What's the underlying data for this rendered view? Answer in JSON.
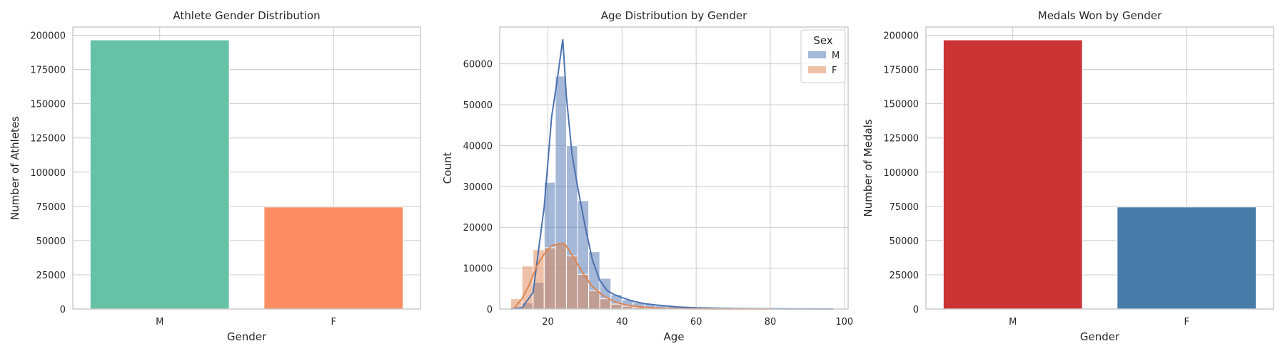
{
  "chart_data": [
    {
      "type": "bar",
      "title": "Athlete Gender Distribution",
      "xlabel": "Gender",
      "ylabel": "Number of Athletes",
      "categories": [
        "M",
        "F"
      ],
      "values": [
        196594,
        74522
      ],
      "colors": [
        "#66c2a5",
        "#fc8d62"
      ],
      "ylim": [
        0,
        206000
      ],
      "yticks": [
        0,
        25000,
        50000,
        75000,
        100000,
        125000,
        150000,
        175000,
        200000
      ],
      "grid": true
    },
    {
      "type": "histogram",
      "title": "Age Distribution by Gender",
      "xlabel": "Age",
      "ylabel": "Count",
      "legend_title": "Sex",
      "legend_position": "top-right",
      "xlim": [
        7,
        101
      ],
      "ylim": [
        0,
        69000
      ],
      "xticks": [
        20,
        40,
        60,
        80,
        100
      ],
      "yticks": [
        0,
        10000,
        20000,
        30000,
        40000,
        50000,
        60000
      ],
      "bin_edges": [
        10,
        13,
        16,
        19,
        22,
        25,
        28,
        31,
        34,
        37,
        40,
        43,
        46,
        49,
        52,
        55,
        58,
        61,
        64,
        67,
        70,
        73,
        76,
        79,
        82,
        85,
        88,
        91,
        94,
        97
      ],
      "series": [
        {
          "name": "M",
          "color": "#4c72b0",
          "counts": [
            100,
            1500,
            6500,
            31000,
            57000,
            40000,
            26500,
            14000,
            7500,
            3500,
            2300,
            1500,
            1100,
            800,
            600,
            400,
            300,
            200,
            150,
            100,
            80,
            60,
            40,
            30,
            20,
            15,
            10,
            5,
            3
          ],
          "kde_x": [
            10,
            13,
            16,
            19,
            21,
            22.5,
            24,
            25,
            26.5,
            28,
            30,
            32,
            34,
            36,
            38,
            40,
            43,
            46,
            50,
            55,
            60,
            65,
            70,
            80,
            90,
            97
          ],
          "kde_y": [
            0,
            300,
            4000,
            25000,
            47000,
            56000,
            66000,
            52000,
            38000,
            30000,
            20500,
            12000,
            7000,
            4500,
            3500,
            2800,
            1900,
            1300,
            900,
            500,
            300,
            200,
            100,
            50,
            20,
            0
          ]
        },
        {
          "name": "F",
          "color": "#dd8452",
          "counts": [
            2500,
            10500,
            14500,
            15000,
            16000,
            13000,
            8500,
            4500,
            2500,
            1200,
            700,
            400,
            250,
            150,
            100,
            60,
            40,
            20,
            10,
            5,
            3,
            2,
            1,
            0,
            0,
            0,
            0,
            0,
            0
          ],
          "kde_x": [
            11,
            13,
            15,
            17,
            19,
            21,
            23,
            24.5,
            26,
            28,
            30,
            32,
            35,
            38,
            41,
            45,
            50,
            55,
            60,
            70,
            80
          ],
          "kde_y": [
            300,
            2500,
            6000,
            10500,
            13500,
            15500,
            16000,
            16000,
            14000,
            11000,
            8000,
            5500,
            3200,
            1800,
            1000,
            500,
            200,
            80,
            30,
            5,
            0
          ]
        }
      ],
      "grid": true
    },
    {
      "type": "bar",
      "title": "Medals Won by Gender",
      "xlabel": "Gender",
      "ylabel": "Number of Medals",
      "categories": [
        "M",
        "F"
      ],
      "values": [
        196594,
        74522
      ],
      "colors": [
        "#cb3335",
        "#477ca8"
      ],
      "ylim": [
        0,
        206000
      ],
      "yticks": [
        0,
        25000,
        50000,
        75000,
        100000,
        125000,
        150000,
        175000,
        200000
      ],
      "grid": true
    }
  ]
}
